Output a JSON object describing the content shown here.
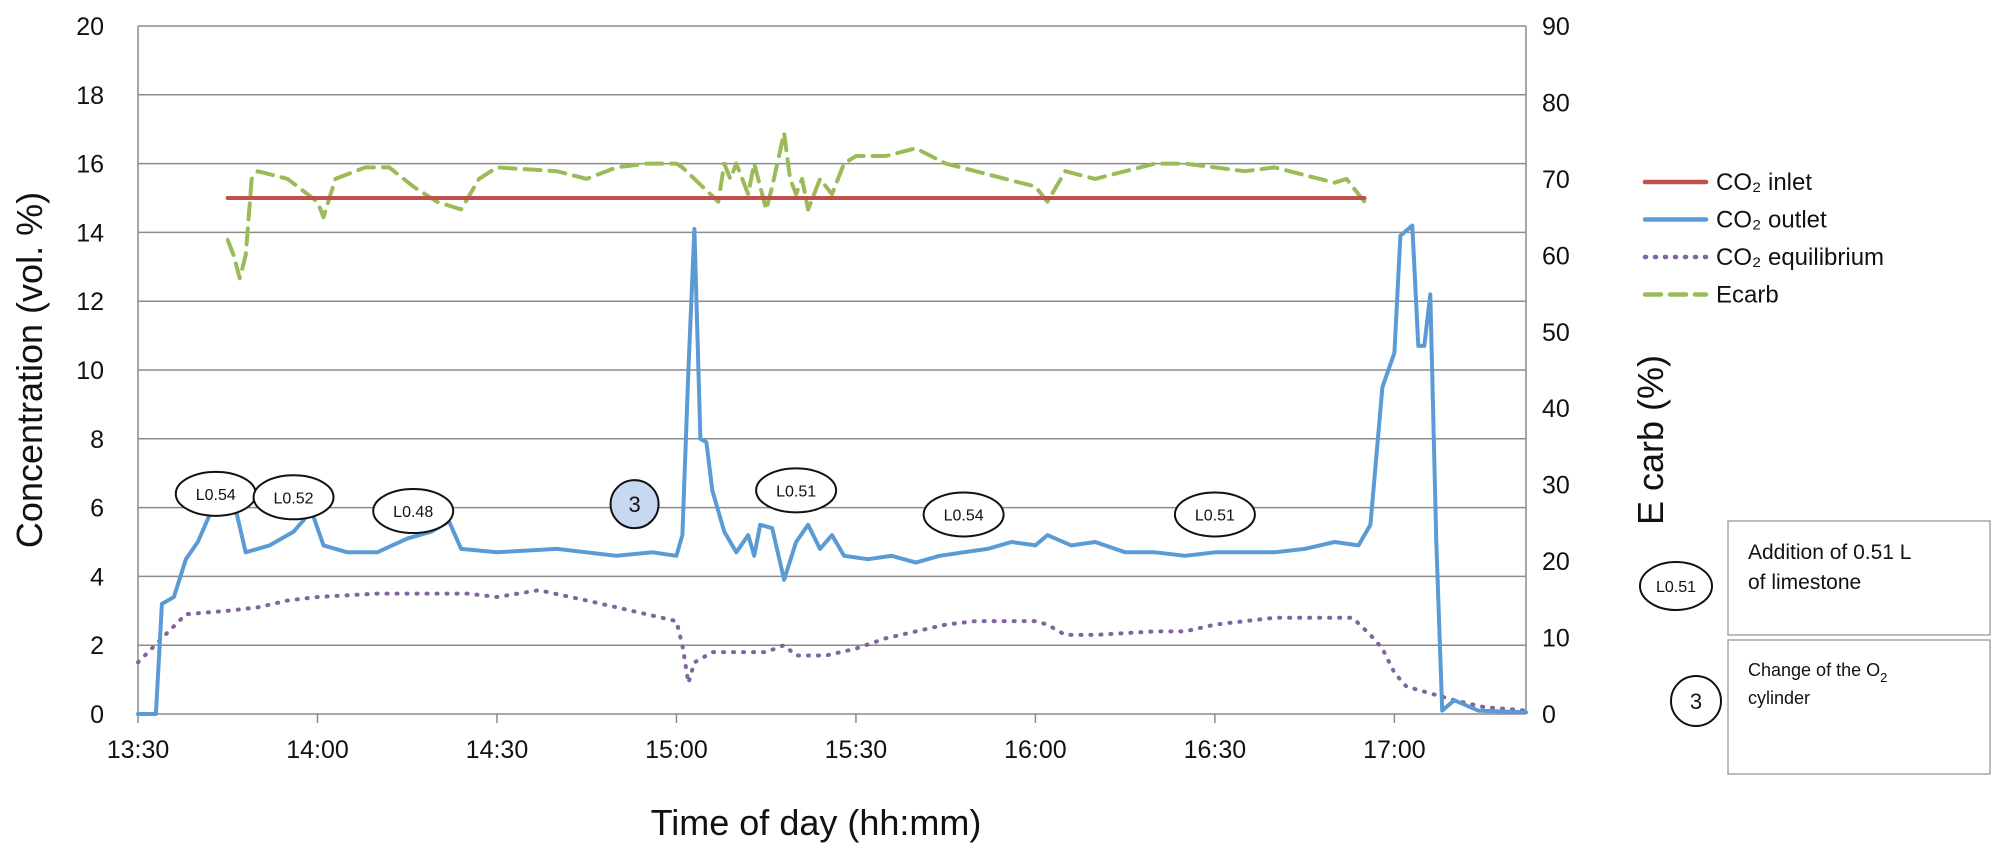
{
  "chart_data": {
    "type": "line",
    "xlabel": "Time of day (hh:mm)",
    "ylabel_left": "Concentration (vol. %)",
    "ylabel_right": "E carb (%)",
    "x_range": [
      "13:30",
      "17:22"
    ],
    "x_ticks": [
      "13:30",
      "14:00",
      "14:30",
      "15:00",
      "15:30",
      "16:00",
      "16:30",
      "17:00"
    ],
    "y_left_range": [
      0,
      20
    ],
    "y_left_ticks": [
      "0",
      "2",
      "4",
      "6",
      "8",
      "10",
      "12",
      "14",
      "16",
      "18",
      "20"
    ],
    "y_right_range": [
      0,
      90
    ],
    "y_right_ticks": [
      "0",
      "10",
      "20",
      "30",
      "40",
      "50",
      "60",
      "70",
      "80",
      "90"
    ],
    "grid": "horizontal",
    "legend_position": "right",
    "series": [
      {
        "name": "CO₂ inlet",
        "axis": "left",
        "color": "#c0504d",
        "style": "solid",
        "points": [
          [
            "13:45",
            15.0
          ],
          [
            "16:55",
            15.0
          ]
        ]
      },
      {
        "name": "CO₂ outlet",
        "axis": "left",
        "color": "#5b9bd5",
        "style": "solid",
        "points": [
          [
            "13:30",
            0
          ],
          [
            "13:33",
            0
          ],
          [
            "13:34",
            3.2
          ],
          [
            "13:36",
            3.4
          ],
          [
            "13:38",
            4.5
          ],
          [
            "13:40",
            5.0
          ],
          [
            "13:42",
            5.8
          ],
          [
            "13:44",
            6.8
          ],
          [
            "13:46",
            6.2
          ],
          [
            "13:48",
            4.7
          ],
          [
            "13:52",
            4.9
          ],
          [
            "13:56",
            5.3
          ],
          [
            "13:59",
            5.9
          ],
          [
            "14:01",
            4.9
          ],
          [
            "14:05",
            4.7
          ],
          [
            "14:10",
            4.7
          ],
          [
            "14:15",
            5.1
          ],
          [
            "14:19",
            5.3
          ],
          [
            "14:22",
            5.6
          ],
          [
            "14:24",
            4.8
          ],
          [
            "14:30",
            4.7
          ],
          [
            "14:40",
            4.8
          ],
          [
            "14:50",
            4.6
          ],
          [
            "14:56",
            4.7
          ],
          [
            "15:00",
            4.6
          ],
          [
            "15:01",
            5.2
          ],
          [
            "15:02",
            10.0
          ],
          [
            "15:03",
            14.1
          ],
          [
            "15:04",
            8.0
          ],
          [
            "15:05",
            7.9
          ],
          [
            "15:06",
            6.5
          ],
          [
            "15:08",
            5.3
          ],
          [
            "15:10",
            4.7
          ],
          [
            "15:12",
            5.2
          ],
          [
            "15:13",
            4.6
          ],
          [
            "15:14",
            5.5
          ],
          [
            "15:16",
            5.4
          ],
          [
            "15:18",
            3.9
          ],
          [
            "15:20",
            5.0
          ],
          [
            "15:22",
            5.5
          ],
          [
            "15:24",
            4.8
          ],
          [
            "15:26",
            5.2
          ],
          [
            "15:28",
            4.6
          ],
          [
            "15:32",
            4.5
          ],
          [
            "15:36",
            4.6
          ],
          [
            "15:40",
            4.4
          ],
          [
            "15:44",
            4.6
          ],
          [
            "15:48",
            4.7
          ],
          [
            "15:52",
            4.8
          ],
          [
            "15:56",
            5.0
          ],
          [
            "16:00",
            4.9
          ],
          [
            "16:02",
            5.2
          ],
          [
            "16:06",
            4.9
          ],
          [
            "16:10",
            5.0
          ],
          [
            "16:15",
            4.7
          ],
          [
            "16:20",
            4.7
          ],
          [
            "16:25",
            4.6
          ],
          [
            "16:30",
            4.7
          ],
          [
            "16:35",
            4.7
          ],
          [
            "16:40",
            4.7
          ],
          [
            "16:45",
            4.8
          ],
          [
            "16:50",
            5.0
          ],
          [
            "16:54",
            4.9
          ],
          [
            "16:56",
            5.5
          ],
          [
            "16:58",
            9.5
          ],
          [
            "17:00",
            10.5
          ],
          [
            "17:01",
            13.9
          ],
          [
            "17:03",
            14.2
          ],
          [
            "17:04",
            10.7
          ],
          [
            "17:05",
            10.7
          ],
          [
            "17:06",
            12.2
          ],
          [
            "17:07",
            5.0
          ],
          [
            "17:08",
            0.1
          ],
          [
            "17:10",
            0.4
          ],
          [
            "17:14",
            0.1
          ],
          [
            "17:22",
            0.05
          ]
        ]
      },
      {
        "name": "CO₂ equilibrium",
        "axis": "left",
        "color": "#8064a2",
        "style": "dotted",
        "points": [
          [
            "13:30",
            1.5
          ],
          [
            "13:34",
            2.2
          ],
          [
            "13:38",
            2.9
          ],
          [
            "13:45",
            3.0
          ],
          [
            "13:50",
            3.1
          ],
          [
            "13:55",
            3.3
          ],
          [
            "14:00",
            3.4
          ],
          [
            "14:10",
            3.5
          ],
          [
            "14:20",
            3.5
          ],
          [
            "14:25",
            3.5
          ],
          [
            "14:30",
            3.4
          ],
          [
            "14:37",
            3.6
          ],
          [
            "14:45",
            3.3
          ],
          [
            "14:55",
            2.9
          ],
          [
            "15:00",
            2.7
          ],
          [
            "15:01",
            2.0
          ],
          [
            "15:02",
            0.9
          ],
          [
            "15:03",
            1.5
          ],
          [
            "15:06",
            1.8
          ],
          [
            "15:10",
            1.8
          ],
          [
            "15:15",
            1.8
          ],
          [
            "15:18",
            2.0
          ],
          [
            "15:20",
            1.7
          ],
          [
            "15:25",
            1.7
          ],
          [
            "15:30",
            1.9
          ],
          [
            "15:35",
            2.2
          ],
          [
            "15:40",
            2.4
          ],
          [
            "15:45",
            2.6
          ],
          [
            "15:50",
            2.7
          ],
          [
            "16:00",
            2.7
          ],
          [
            "16:02",
            2.6
          ],
          [
            "16:05",
            2.3
          ],
          [
            "16:10",
            2.3
          ],
          [
            "16:20",
            2.4
          ],
          [
            "16:25",
            2.4
          ],
          [
            "16:30",
            2.6
          ],
          [
            "16:40",
            2.8
          ],
          [
            "16:50",
            2.8
          ],
          [
            "16:53",
            2.8
          ],
          [
            "16:56",
            2.3
          ],
          [
            "16:58",
            1.9
          ],
          [
            "17:00",
            1.2
          ],
          [
            "17:02",
            0.8
          ],
          [
            "17:06",
            0.6
          ],
          [
            "17:10",
            0.4
          ],
          [
            "17:15",
            0.2
          ],
          [
            "17:22",
            0.1
          ]
        ]
      },
      {
        "name": "Ecarb",
        "axis": "right",
        "color": "#9bbb59",
        "style": "dashed",
        "points": [
          [
            "13:45",
            62
          ],
          [
            "13:46",
            60
          ],
          [
            "13:47",
            57
          ],
          [
            "13:48",
            60
          ],
          [
            "13:49",
            70
          ],
          [
            "13:50",
            71
          ],
          [
            "13:55",
            70
          ],
          [
            "14:00",
            67
          ],
          [
            "14:01",
            65
          ],
          [
            "14:03",
            70
          ],
          [
            "14:08",
            71.5
          ],
          [
            "14:12",
            71.5
          ],
          [
            "14:16",
            69
          ],
          [
            "14:20",
            67
          ],
          [
            "14:24",
            66
          ],
          [
            "14:27",
            70
          ],
          [
            "14:30",
            71.5
          ],
          [
            "14:40",
            71
          ],
          [
            "14:45",
            70
          ],
          [
            "14:50",
            71.5
          ],
          [
            "14:55",
            72
          ],
          [
            "15:00",
            72
          ],
          [
            "15:01",
            71.5
          ],
          [
            "15:07",
            67
          ],
          [
            "15:08",
            72
          ],
          [
            "15:09",
            70
          ],
          [
            "15:10",
            72
          ],
          [
            "15:12",
            68
          ],
          [
            "15:13",
            72
          ],
          [
            "15:15",
            66
          ],
          [
            "15:16",
            69
          ],
          [
            "15:18",
            76
          ],
          [
            "15:19",
            70
          ],
          [
            "15:20",
            68
          ],
          [
            "15:21",
            70
          ],
          [
            "15:22",
            66
          ],
          [
            "15:24",
            70
          ],
          [
            "15:26",
            68
          ],
          [
            "15:28",
            72
          ],
          [
            "15:30",
            73
          ],
          [
            "15:35",
            73
          ],
          [
            "15:40",
            74
          ],
          [
            "15:45",
            72
          ],
          [
            "15:50",
            71
          ],
          [
            "15:55",
            70
          ],
          [
            "16:00",
            69
          ],
          [
            "16:02",
            67
          ],
          [
            "16:05",
            71
          ],
          [
            "16:10",
            70
          ],
          [
            "16:15",
            71
          ],
          [
            "16:20",
            72
          ],
          [
            "16:25",
            72
          ],
          [
            "16:30",
            71.5
          ],
          [
            "16:35",
            71
          ],
          [
            "16:40",
            71.5
          ],
          [
            "16:45",
            70.5
          ],
          [
            "16:50",
            69.5
          ],
          [
            "16:52",
            70
          ],
          [
            "16:55",
            67
          ]
        ]
      }
    ],
    "annotations": [
      {
        "text": "L0.54",
        "x": "13:43",
        "y": 6.4
      },
      {
        "text": "L0.52",
        "x": "13:56",
        "y": 6.3
      },
      {
        "text": "L0.48",
        "x": "14:16",
        "y": 5.9
      },
      {
        "text": "3",
        "x": "14:53",
        "y": 6.1
      },
      {
        "text": "L0.51",
        "x": "15:20",
        "y": 6.5
      },
      {
        "text": "L0.54",
        "x": "15:48",
        "y": 5.8
      },
      {
        "text": "L0.51",
        "x": "16:30",
        "y": 5.8
      }
    ],
    "notes": [
      {
        "symbol": "L0.51",
        "text_lines": [
          "Addition of 0.51 L",
          "of limestone"
        ]
      },
      {
        "symbol": "3",
        "text_lines": [
          "Change of the O",
          "2",
          "cylinder"
        ]
      }
    ]
  }
}
